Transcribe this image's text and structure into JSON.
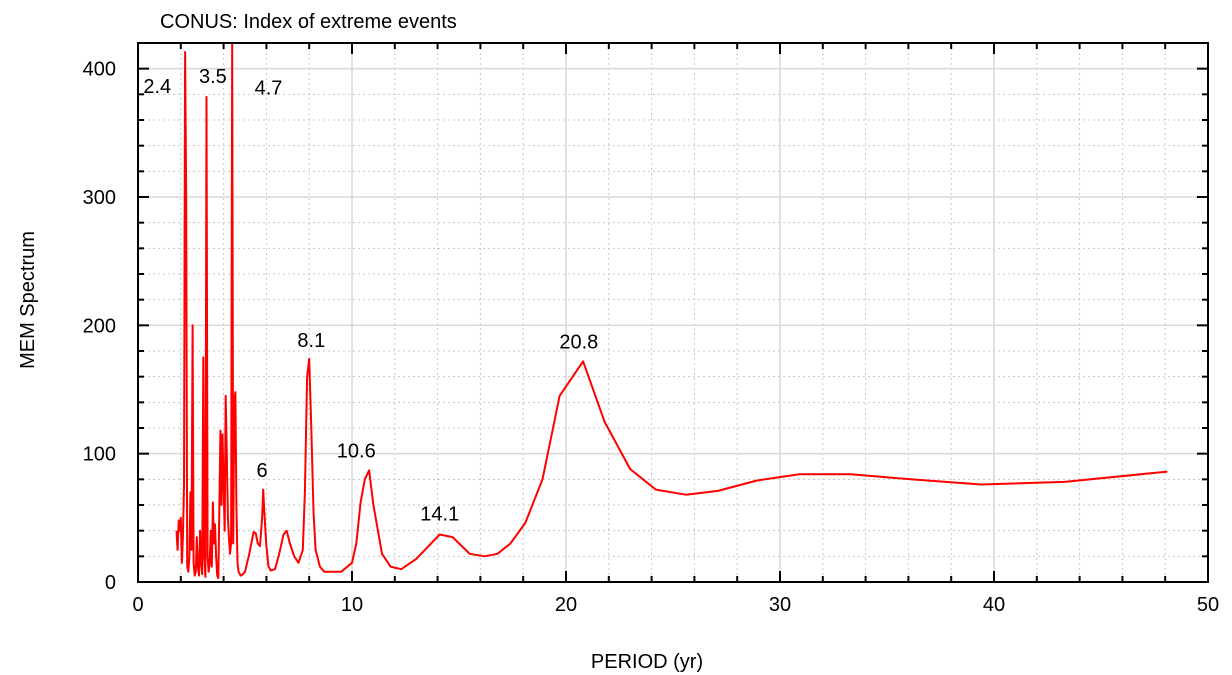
{
  "chart_data": {
    "type": "line",
    "title": "CONUS: Index of extreme events",
    "xlabel": "PERIOD (yr)",
    "ylabel": "MEM Spectrum",
    "xlim": [
      0,
      50
    ],
    "ylim": [
      0,
      420
    ],
    "x_ticks": [
      0,
      10,
      20,
      30,
      40,
      50
    ],
    "y_ticks": [
      0,
      100,
      200,
      300,
      400
    ],
    "grid": true,
    "line_color": "#ff0000",
    "series": [
      {
        "x": [
          1.8,
          1.85,
          1.9,
          1.95,
          2.0,
          2.05,
          2.1,
          2.15,
          2.2,
          2.25,
          2.3,
          2.35,
          2.4,
          2.45,
          2.5,
          2.55,
          2.6,
          2.65,
          2.7,
          2.75,
          2.8,
          2.85,
          2.9,
          2.95,
          3.0,
          3.05,
          3.1,
          3.15,
          3.2,
          3.25,
          3.3,
          3.35,
          3.4,
          3.45,
          3.5,
          3.55,
          3.6,
          3.65,
          3.7,
          3.75,
          3.8,
          3.85,
          3.9,
          3.95,
          4.0,
          4.05,
          4.1,
          4.15,
          4.2,
          4.25,
          4.3,
          4.35,
          4.4,
          4.45,
          4.5,
          4.55,
          4.6,
          4.65,
          4.7,
          4.8,
          4.9,
          5.0,
          5.2,
          5.4,
          5.5,
          5.6,
          5.7,
          5.8,
          5.85,
          5.9,
          6.0,
          6.1,
          6.2,
          6.4,
          6.6,
          6.8,
          6.95,
          7.1,
          7.3,
          7.5,
          7.7,
          7.8,
          7.9,
          8.0,
          8.1,
          8.2,
          8.3,
          8.5,
          8.7,
          9.0,
          9.5,
          10.0,
          10.2,
          10.4,
          10.6,
          10.8,
          11.0,
          11.4,
          11.8,
          12.3,
          13.0,
          14.1,
          14.7,
          15.5,
          16.2,
          16.8,
          17.4,
          18.1,
          18.9,
          19.7,
          20.8,
          21.8,
          23.0,
          24.2,
          25.6,
          27.1,
          28.9,
          30.9,
          33.3,
          36.1,
          39.4,
          43.3,
          48.1
        ],
        "y": [
          40,
          25,
          48,
          40,
          50,
          15,
          35,
          75,
          413,
          300,
          12,
          8,
          20,
          70,
          25,
          200,
          15,
          5,
          8,
          35,
          12,
          5,
          40,
          15,
          6,
          175,
          20,
          4,
          378,
          20,
          8,
          15,
          40,
          12,
          62,
          30,
          45,
          20,
          5,
          3,
          55,
          118,
          60,
          115,
          75,
          40,
          145,
          100,
          50,
          35,
          22,
          30,
          420,
          30,
          140,
          148,
          60,
          15,
          8,
          5,
          6,
          8,
          22,
          39,
          38,
          30,
          28,
          50,
          72,
          55,
          28,
          12,
          9,
          10,
          22,
          37,
          40,
          30,
          20,
          15,
          25,
          70,
          160,
          174,
          120,
          55,
          25,
          12,
          8,
          8,
          8,
          15,
          30,
          62,
          80,
          87,
          60,
          22,
          12,
          10,
          18,
          37,
          35,
          22,
          20,
          22,
          30,
          46,
          80,
          145,
          172,
          125,
          88,
          72,
          68,
          71,
          79,
          84,
          84,
          80,
          76,
          78,
          86
        ]
      }
    ],
    "annotations": [
      {
        "text": "2.4",
        "x": 0.9,
        "y": 381
      },
      {
        "text": "3.5",
        "x": 3.5,
        "y": 389
      },
      {
        "text": "4.7",
        "x": 6.1,
        "y": 380
      },
      {
        "text": "6",
        "x": 5.8,
        "y": 82
      },
      {
        "text": "8.1",
        "x": 8.1,
        "y": 183
      },
      {
        "text": "10.6",
        "x": 10.2,
        "y": 97
      },
      {
        "text": "14.1",
        "x": 14.1,
        "y": 48
      },
      {
        "text": "20.8",
        "x": 20.6,
        "y": 182
      }
    ]
  }
}
